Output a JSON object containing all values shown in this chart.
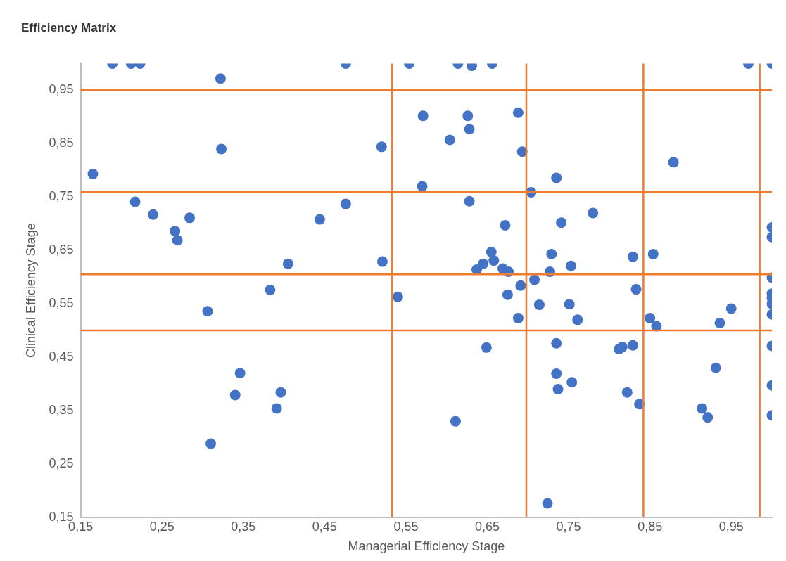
{
  "chart_data": {
    "type": "scatter",
    "title": "Efficiency Matrix",
    "xlabel": "Managerial Efficiency Stage",
    "ylabel": "Clinical Efficiency Stage",
    "marker": "circle",
    "grid": false,
    "legend": false,
    "xlim": [
      0.15,
      1.0
    ],
    "ylim": [
      0.15,
      1.0
    ],
    "xticks": [
      {
        "value": 0.15,
        "label": "0,15"
      },
      {
        "value": 0.25,
        "label": "0,25"
      },
      {
        "value": 0.35,
        "label": "0,35"
      },
      {
        "value": 0.45,
        "label": "0,45"
      },
      {
        "value": 0.55,
        "label": "0,55"
      },
      {
        "value": 0.65,
        "label": "0,65"
      },
      {
        "value": 0.75,
        "label": "0,75"
      },
      {
        "value": 0.85,
        "label": "0,85"
      },
      {
        "value": 0.95,
        "label": "0,95"
      }
    ],
    "yticks": [
      {
        "value": 0.15,
        "label": "0,15"
      },
      {
        "value": 0.25,
        "label": "0,25"
      },
      {
        "value": 0.35,
        "label": "0,35"
      },
      {
        "value": 0.45,
        "label": "0,45"
      },
      {
        "value": 0.55,
        "label": "0,55"
      },
      {
        "value": 0.65,
        "label": "0,65"
      },
      {
        "value": 0.75,
        "label": "0,75"
      },
      {
        "value": 0.85,
        "label": "0,85"
      },
      {
        "value": 0.95,
        "label": "0,95"
      }
    ],
    "ref_lines": [
      {
        "axis": "y",
        "value": 0.95,
        "color": "#ed7d31"
      },
      {
        "axis": "y",
        "value": 0.76,
        "color": "#ed7d31"
      },
      {
        "axis": "y",
        "value": 0.605,
        "color": "#ed7d31"
      },
      {
        "axis": "y",
        "value": 0.5,
        "color": "#ed7d31"
      },
      {
        "axis": "x",
        "value": 0.533,
        "color": "#ed7d31"
      },
      {
        "axis": "x",
        "value": 0.698,
        "color": "#ed7d31"
      },
      {
        "axis": "x",
        "value": 0.842,
        "color": "#ed7d31"
      },
      {
        "axis": "x",
        "value": 0.985,
        "color": "#ed7d31"
      }
    ],
    "series": [
      {
        "color": "#4472c4",
        "x": [
          0.189,
          0.212,
          0.223,
          0.476,
          0.554,
          0.322,
          0.571,
          0.323,
          0.52,
          0.165,
          0.57,
          0.217,
          0.239,
          0.284,
          0.266,
          0.269,
          0.476,
          0.444,
          0.405,
          0.521,
          0.383,
          0.306,
          0.54,
          0.614,
          0.631,
          0.656,
          0.971,
          1.0,
          0.626,
          0.628,
          0.604,
          0.688,
          0.693,
          0.879,
          0.735,
          0.704,
          0.628,
          0.78,
          0.741,
          0.672,
          1.0,
          1.0,
          0.655,
          0.658,
          0.645,
          0.637,
          0.669,
          0.676,
          0.729,
          0.753,
          0.829,
          0.854,
          0.727,
          0.708,
          0.691,
          1.0,
          0.675,
          0.833,
          0.714,
          0.751,
          0.95,
          1.0,
          1.0,
          1.0,
          1.0,
          0.688,
          0.761,
          0.85,
          0.858,
          0.936,
          0.649,
          0.735,
          0.812,
          0.816,
          0.829,
          1.0,
          0.931,
          0.735,
          0.754,
          0.737,
          0.822,
          0.837,
          0.914,
          0.921,
          1.0,
          1.0,
          0.611,
          0.724,
          0.346,
          0.34,
          0.396,
          0.391,
          0.31
        ],
        "values": [
          1.0,
          1.0,
          1.0,
          1.0,
          1.0,
          0.972,
          0.902,
          0.84,
          0.844,
          0.793,
          0.77,
          0.741,
          0.717,
          0.711,
          0.686,
          0.669,
          0.737,
          0.708,
          0.625,
          0.629,
          0.576,
          0.536,
          0.563,
          1.0,
          0.996,
          1.0,
          1.0,
          1.0,
          0.902,
          0.877,
          0.857,
          0.908,
          0.835,
          0.815,
          0.786,
          0.759,
          0.742,
          0.72,
          0.702,
          0.697,
          0.693,
          0.675,
          0.647,
          0.631,
          0.625,
          0.614,
          0.616,
          0.61,
          0.643,
          0.621,
          0.638,
          0.643,
          0.61,
          0.595,
          0.584,
          0.599,
          0.567,
          0.577,
          0.548,
          0.549,
          0.541,
          0.569,
          0.561,
          0.55,
          0.53,
          0.523,
          0.52,
          0.523,
          0.508,
          0.514,
          0.468,
          0.476,
          0.465,
          0.469,
          0.472,
          0.471,
          0.43,
          0.419,
          0.403,
          0.39,
          0.384,
          0.362,
          0.354,
          0.337,
          0.397,
          0.341,
          0.33,
          0.176,
          0.42,
          0.379,
          0.384,
          0.354,
          0.288
        ]
      }
    ]
  }
}
